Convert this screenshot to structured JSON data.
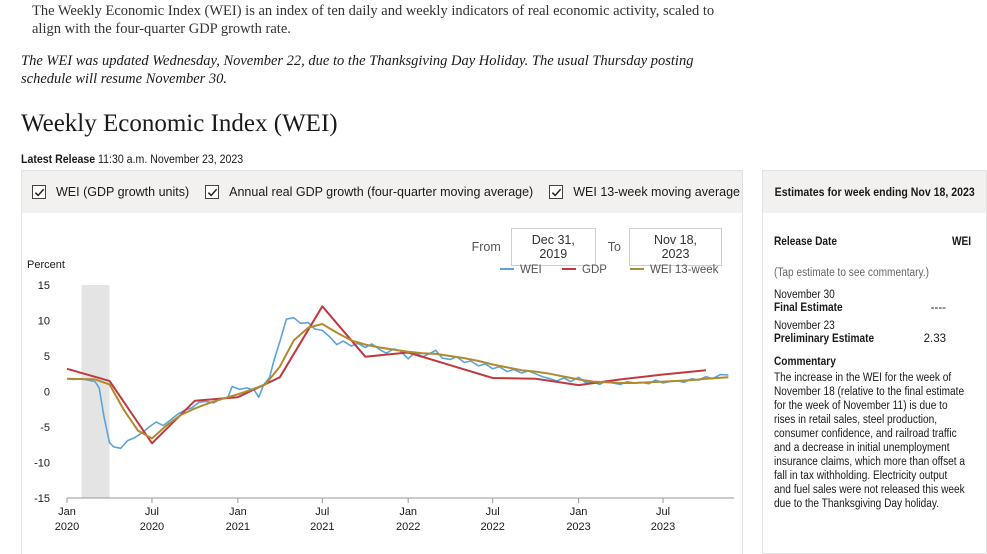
{
  "intro": "The Weekly Economic Index (WEI) is an index of ten daily and weekly indicators of real economic activity, scaled to align with the four-quarter GDP growth rate.",
  "notice": "The WEI was updated Wednesday, November 22, due to the Thanksgiving Day Holiday. The usual Thursday posting schedule will resume November 30.",
  "page_title": "Weekly Economic Index (WEI)",
  "latest_release": {
    "label": "Latest Release",
    "value": "11:30 a.m. November 23, 2023"
  },
  "toggles": [
    {
      "label": "WEI (GDP growth units)",
      "checked": true
    },
    {
      "label": "Annual real GDP growth (four-quarter moving average)",
      "checked": true
    },
    {
      "label": "WEI 13-week moving average",
      "checked": true
    }
  ],
  "date_range": {
    "from_label": "From",
    "from_value": "Dec 31, 2019",
    "to_label": "To",
    "to_value": "Nov 18, 2023"
  },
  "chart_data": {
    "type": "line",
    "ylabel": "Percent",
    "ylim": [
      -15,
      15
    ],
    "yticks": [
      15,
      10,
      5,
      0,
      -5,
      -10,
      -15
    ],
    "xlim": [
      "2020-01-01",
      "2023-11-30"
    ],
    "xticks": [
      {
        "date": "2020-01-01",
        "month": "Jan",
        "year": "2020"
      },
      {
        "date": "2020-07-01",
        "month": "Jul",
        "year": "2020"
      },
      {
        "date": "2021-01-01",
        "month": "Jan",
        "year": "2021"
      },
      {
        "date": "2021-07-01",
        "month": "Jul",
        "year": "2021"
      },
      {
        "date": "2022-01-01",
        "month": "Jan",
        "year": "2022"
      },
      {
        "date": "2022-07-01",
        "month": "Jul",
        "year": "2022"
      },
      {
        "date": "2023-01-01",
        "month": "Jan",
        "year": "2023"
      },
      {
        "date": "2023-07-01",
        "month": "Jul",
        "year": "2023"
      }
    ],
    "recession_shading": [
      "2020-02-01",
      "2020-04-01"
    ],
    "legend_position": "top-right",
    "series": [
      {
        "name": "WEI",
        "color": "#5ba3db",
        "points": [
          [
            "2020-01-01",
            1.8
          ],
          [
            "2020-01-15",
            1.7
          ],
          [
            "2020-02-01",
            1.8
          ],
          [
            "2020-02-15",
            1.6
          ],
          [
            "2020-03-01",
            1.4
          ],
          [
            "2020-03-10",
            0.5
          ],
          [
            "2020-03-20",
            -3.5
          ],
          [
            "2020-04-01",
            -7.2
          ],
          [
            "2020-04-10",
            -7.8
          ],
          [
            "2020-04-25",
            -8.0
          ],
          [
            "2020-05-10",
            -6.9
          ],
          [
            "2020-05-25",
            -6.5
          ],
          [
            "2020-06-10",
            -5.8
          ],
          [
            "2020-06-25",
            -5.0
          ],
          [
            "2020-07-10",
            -4.3
          ],
          [
            "2020-07-25",
            -4.8
          ],
          [
            "2020-08-10",
            -4.0
          ],
          [
            "2020-08-25",
            -3.2
          ],
          [
            "2020-09-10",
            -2.6
          ],
          [
            "2020-09-25",
            -2.3
          ],
          [
            "2020-10-10",
            -1.5
          ],
          [
            "2020-10-25",
            -1.4
          ],
          [
            "2020-11-10",
            -1.6
          ],
          [
            "2020-11-25",
            -1.0
          ],
          [
            "2020-12-10",
            -0.9
          ],
          [
            "2020-12-20",
            0.7
          ],
          [
            "2021-01-05",
            0.3
          ],
          [
            "2021-01-20",
            0.5
          ],
          [
            "2021-02-05",
            0.2
          ],
          [
            "2021-02-15",
            -0.8
          ],
          [
            "2021-02-25",
            0.9
          ],
          [
            "2021-03-10",
            2.0
          ],
          [
            "2021-03-20",
            4.5
          ],
          [
            "2021-04-01",
            7.0
          ],
          [
            "2021-04-15",
            10.2
          ],
          [
            "2021-05-01",
            10.4
          ],
          [
            "2021-05-15",
            9.6
          ],
          [
            "2021-06-01",
            9.7
          ],
          [
            "2021-06-15",
            8.8
          ],
          [
            "2021-07-01",
            8.6
          ],
          [
            "2021-07-15",
            7.8
          ],
          [
            "2021-08-01",
            6.6
          ],
          [
            "2021-08-15",
            7.1
          ],
          [
            "2021-09-01",
            6.4
          ],
          [
            "2021-09-15",
            6.8
          ],
          [
            "2021-10-01",
            6.2
          ],
          [
            "2021-10-15",
            6.7
          ],
          [
            "2021-11-01",
            5.9
          ],
          [
            "2021-11-15",
            5.4
          ],
          [
            "2021-12-01",
            6.0
          ],
          [
            "2021-12-15",
            5.7
          ],
          [
            "2022-01-01",
            4.6
          ],
          [
            "2022-01-15",
            5.5
          ],
          [
            "2022-02-01",
            4.9
          ],
          [
            "2022-02-15",
            5.3
          ],
          [
            "2022-03-01",
            5.8
          ],
          [
            "2022-03-15",
            4.7
          ],
          [
            "2022-04-01",
            4.5
          ],
          [
            "2022-04-15",
            4.9
          ],
          [
            "2022-05-01",
            4.1
          ],
          [
            "2022-05-15",
            4.3
          ],
          [
            "2022-06-01",
            3.6
          ],
          [
            "2022-06-15",
            3.9
          ],
          [
            "2022-07-01",
            3.2
          ],
          [
            "2022-07-15",
            3.5
          ],
          [
            "2022-08-01",
            2.8
          ],
          [
            "2022-08-15",
            3.1
          ],
          [
            "2022-09-01",
            2.6
          ],
          [
            "2022-09-15",
            2.9
          ],
          [
            "2022-10-01",
            2.5
          ],
          [
            "2022-10-15",
            2.1
          ],
          [
            "2022-11-01",
            1.8
          ],
          [
            "2022-11-15",
            1.5
          ],
          [
            "2022-12-01",
            1.9
          ],
          [
            "2022-12-15",
            1.4
          ],
          [
            "2023-01-01",
            2.0
          ],
          [
            "2023-01-15",
            1.3
          ],
          [
            "2023-02-01",
            1.4
          ],
          [
            "2023-02-15",
            1.0
          ],
          [
            "2023-03-01",
            1.5
          ],
          [
            "2023-03-15",
            1.2
          ],
          [
            "2023-04-01",
            1.0
          ],
          [
            "2023-04-15",
            1.4
          ],
          [
            "2023-05-01",
            1.2
          ],
          [
            "2023-05-15",
            1.3
          ],
          [
            "2023-06-01",
            1.1
          ],
          [
            "2023-06-15",
            1.6
          ],
          [
            "2023-07-01",
            1.2
          ],
          [
            "2023-07-15",
            1.4
          ],
          [
            "2023-08-01",
            1.5
          ],
          [
            "2023-08-15",
            1.3
          ],
          [
            "2023-09-01",
            1.8
          ],
          [
            "2023-09-15",
            1.6
          ],
          [
            "2023-10-01",
            2.1
          ],
          [
            "2023-10-15",
            1.8
          ],
          [
            "2023-11-01",
            2.4
          ],
          [
            "2023-11-18",
            2.33
          ]
        ]
      },
      {
        "name": "GDP",
        "color": "#c0393f",
        "points": [
          [
            "2020-01-01",
            3.2
          ],
          [
            "2020-04-01",
            1.5
          ],
          [
            "2020-07-01",
            -7.3
          ],
          [
            "2020-10-01",
            -1.3
          ],
          [
            "2021-01-01",
            -0.8
          ],
          [
            "2021-04-01",
            2.0
          ],
          [
            "2021-07-01",
            12.0
          ],
          [
            "2021-10-01",
            4.9
          ],
          [
            "2022-01-01",
            5.5
          ],
          [
            "2022-04-01",
            3.7
          ],
          [
            "2022-07-01",
            1.9
          ],
          [
            "2022-10-01",
            1.8
          ],
          [
            "2023-01-01",
            0.9
          ],
          [
            "2023-04-01",
            1.7
          ],
          [
            "2023-07-01",
            2.4
          ],
          [
            "2023-10-01",
            3.0
          ]
        ]
      },
      {
        "name": "WEI 13-week",
        "color": "#b08a2e",
        "points": [
          [
            "2020-01-01",
            1.8
          ],
          [
            "2020-03-01",
            1.7
          ],
          [
            "2020-04-01",
            1.0
          ],
          [
            "2020-05-01",
            -2.5
          ],
          [
            "2020-06-01",
            -5.5
          ],
          [
            "2020-07-01",
            -6.6
          ],
          [
            "2020-08-01",
            -4.8
          ],
          [
            "2020-09-01",
            -3.3
          ],
          [
            "2020-10-01",
            -2.4
          ],
          [
            "2020-11-01",
            -1.6
          ],
          [
            "2020-12-01",
            -1.0
          ],
          [
            "2021-01-01",
            -0.4
          ],
          [
            "2021-02-01",
            0.3
          ],
          [
            "2021-03-01",
            1.0
          ],
          [
            "2021-04-01",
            3.5
          ],
          [
            "2021-05-01",
            7.2
          ],
          [
            "2021-06-01",
            9.0
          ],
          [
            "2021-07-01",
            9.5
          ],
          [
            "2021-08-01",
            8.3
          ],
          [
            "2021-09-01",
            7.2
          ],
          [
            "2021-10-01",
            6.6
          ],
          [
            "2021-11-01",
            6.2
          ],
          [
            "2021-12-01",
            5.9
          ],
          [
            "2022-01-01",
            5.6
          ],
          [
            "2022-02-01",
            5.4
          ],
          [
            "2022-03-01",
            5.3
          ],
          [
            "2022-04-01",
            5.0
          ],
          [
            "2022-05-01",
            4.7
          ],
          [
            "2022-06-01",
            4.3
          ],
          [
            "2022-07-01",
            3.8
          ],
          [
            "2022-08-01",
            3.4
          ],
          [
            "2022-09-01",
            3.0
          ],
          [
            "2022-10-01",
            2.8
          ],
          [
            "2022-11-01",
            2.5
          ],
          [
            "2022-12-01",
            2.1
          ],
          [
            "2023-01-01",
            1.7
          ],
          [
            "2023-02-01",
            1.4
          ],
          [
            "2023-03-01",
            1.3
          ],
          [
            "2023-04-01",
            1.2
          ],
          [
            "2023-05-01",
            1.2
          ],
          [
            "2023-06-01",
            1.3
          ],
          [
            "2023-07-01",
            1.4
          ],
          [
            "2023-08-01",
            1.5
          ],
          [
            "2023-09-01",
            1.6
          ],
          [
            "2023-10-01",
            1.8
          ],
          [
            "2023-11-18",
            2.0
          ]
        ]
      }
    ]
  },
  "estimates": {
    "header": "Estimates for week ending Nov 18, 2023",
    "col_release": "Release Date",
    "col_wei": "WEI",
    "note": "(Tap estimate to see commentary.)",
    "rows": [
      {
        "date": "November 30",
        "type": "Final Estimate",
        "value": "----"
      },
      {
        "date": "November 23",
        "type": "Preliminary Estimate",
        "value": "2.33"
      }
    ],
    "commentary_title": "Commentary",
    "commentary": "The increase in the WEI for the week of November 18 (relative to the final estimate for the week of November 11) is due to rises in retail sales, steel production, consumer confidence, and railroad traffic and a decrease in initial unemployment insurance claims, which more than offset a fall in tax withholding. Electricity output and fuel sales were not released this week due to the Thanksgiving Day holiday."
  },
  "check_icon": "checkmark-icon"
}
